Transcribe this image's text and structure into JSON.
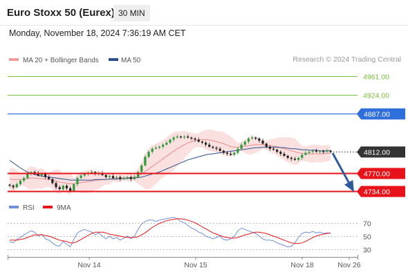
{
  "header": {
    "title": "Euro Stoxx 50 (Eurex)",
    "interval": "30 MIN",
    "timestamp": "Monday, November 18, 2024 7:36:19 AM CET",
    "credit": "Research © 2024 Trading Central"
  },
  "colors": {
    "resistance_green": "#7dbb3c",
    "resistance_blue": "#2f6fdb",
    "support_red": "#e8131a",
    "last_price": "#333333",
    "candle_up": "#2e9a3e",
    "candle_down": "#1f1f1f",
    "band_fill": "#f9d6d6",
    "ma20": "#e98a8a",
    "ma50": "#2a4f8c",
    "arrow": "#2f5b9a",
    "rsi": "#6f8fdc",
    "rsi_ma": "#e8131a"
  },
  "chart_data": [
    {
      "type": "candlestick",
      "legend": [
        {
          "name": "MA 20 + Bollinger Bands",
          "color": "#f29b9b"
        },
        {
          "name": "MA 50",
          "color": "#2a4f8c"
        }
      ],
      "ylim": [
        4726,
        4975
      ],
      "x_ticks": [
        "Nov 14",
        "Nov 15",
        "Nov 18",
        "Nov 26"
      ],
      "levels": [
        {
          "label": "4961.00",
          "value": 4961,
          "kind": "resistance",
          "style": "green"
        },
        {
          "label": "4924.00",
          "value": 4924,
          "kind": "resistance",
          "style": "green"
        },
        {
          "label": "4887.00",
          "value": 4887,
          "kind": "resistance",
          "style": "blue"
        },
        {
          "label": "4812.00",
          "value": 4812,
          "kind": "last",
          "style": "dark"
        },
        {
          "label": "4770.00",
          "value": 4770,
          "kind": "support",
          "style": "red"
        },
        {
          "label": "4734.00",
          "value": 4734,
          "kind": "support",
          "style": "red"
        }
      ],
      "forecast_arrow": {
        "from": 4812,
        "to": 4740
      },
      "closes": [
        4745,
        4742,
        4748,
        4755,
        4760,
        4768,
        4772,
        4770,
        4765,
        4768,
        4762,
        4758,
        4750,
        4742,
        4738,
        4745,
        4740,
        4735,
        4748,
        4760,
        4765,
        4768,
        4770,
        4772,
        4768,
        4770,
        4766,
        4762,
        4764,
        4760,
        4762,
        4758,
        4760,
        4762,
        4758,
        4762,
        4772,
        4785,
        4802,
        4812,
        4818,
        4820,
        4822,
        4826,
        4830,
        4836,
        4840,
        4842,
        4841,
        4842,
        4840,
        4838,
        4836,
        4832,
        4830,
        4826,
        4822,
        4820,
        4818,
        4814,
        4810,
        4808,
        4806,
        4810,
        4818,
        4826,
        4832,
        4838,
        4840,
        4838,
        4834,
        4828,
        4822,
        4818,
        4816,
        4812,
        4808,
        4804,
        4800,
        4798,
        4796,
        4800,
        4806,
        4810,
        4812,
        4814,
        4812,
        4813,
        4812,
        4814,
        4812
      ],
      "ma20": [
        4758,
        4757,
        4757,
        4757,
        4758,
        4759,
        4760,
        4760,
        4759,
        4759,
        4758,
        4757,
        4756,
        4754,
        4752,
        4751,
        4750,
        4749,
        4749,
        4750,
        4751,
        4752,
        4753,
        4754,
        4755,
        4756,
        4757,
        4757,
        4758,
        4759,
        4759,
        4760,
        4760,
        4761,
        4761,
        4762,
        4764,
        4768,
        4773,
        4778,
        4783,
        4788,
        4793,
        4798,
        4803,
        4808,
        4813,
        4818,
        4822,
        4826,
        4829,
        4832,
        4834,
        4835,
        4836,
        4836,
        4835,
        4834,
        4832,
        4830,
        4828,
        4825,
        4822,
        4821,
        4821,
        4822,
        4823,
        4824,
        4825,
        4826,
        4826,
        4826,
        4825,
        4824,
        4823,
        4822,
        4820,
        4818,
        4816,
        4814,
        4812,
        4810,
        4809,
        4808,
        4808,
        4808,
        4808,
        4808,
        4808,
        4809,
        4809
      ],
      "ma50": [
        4795,
        4790,
        4785,
        4780,
        4776,
        4772,
        4769,
        4767,
        4765,
        4764,
        4763,
        4762,
        4761,
        4760,
        4759,
        4758,
        4757,
        4756,
        4756,
        4756,
        4756,
        4756,
        4756,
        4756,
        4757,
        4757,
        4757,
        4757,
        4758,
        4758,
        4758,
        4759,
        4759,
        4759,
        4760,
        4760,
        4761,
        4762,
        4764,
        4766,
        4768,
        4770,
        4772,
        4775,
        4778,
        4781,
        4784,
        4787,
        4790,
        4793,
        4796,
        4798,
        4800,
        4802,
        4804,
        4806,
        4807,
        4808,
        4809,
        4810,
        4811,
        4812,
        4813,
        4814,
        4815,
        4816,
        4817,
        4818,
        4819,
        4820,
        4820,
        4821,
        4821,
        4821,
        4821,
        4821,
        4820,
        4820,
        4819,
        4818,
        4818,
        4817,
        4816,
        4816,
        4815,
        4815,
        4815,
        4814,
        4814,
        4814,
        4814
      ]
    },
    {
      "type": "line",
      "legend": [
        {
          "name": "RSI",
          "color": "#6f8fdc"
        },
        {
          "name": "9MA",
          "color": "#e8131a"
        }
      ],
      "ylim": [
        20,
        80
      ],
      "y_ticks": [
        30,
        50,
        70
      ],
      "rsi": [
        42,
        40,
        45,
        48,
        52,
        55,
        58,
        56,
        50,
        53,
        46,
        44,
        40,
        36,
        35,
        42,
        38,
        34,
        45,
        55,
        58,
        60,
        58,
        56,
        52,
        55,
        50,
        46,
        50,
        46,
        48,
        44,
        47,
        50,
        46,
        50,
        60,
        68,
        72,
        74,
        74,
        72,
        74,
        75,
        76,
        77,
        78,
        76,
        72,
        70,
        66,
        62,
        60,
        56,
        54,
        50,
        48,
        46,
        48,
        50,
        45,
        44,
        46,
        50,
        58,
        62,
        60,
        58,
        56,
        54,
        50,
        46,
        44,
        44,
        43,
        40,
        38,
        36,
        34,
        35,
        40,
        48,
        54,
        56,
        55,
        57,
        55,
        56,
        54,
        55,
        54
      ],
      "ma9": [
        44,
        44,
        44,
        45,
        46,
        48,
        50,
        52,
        52,
        52,
        51,
        50,
        48,
        46,
        44,
        43,
        42,
        40,
        40,
        42,
        45,
        48,
        51,
        54,
        56,
        56,
        56,
        55,
        53,
        52,
        51,
        50,
        49,
        48,
        48,
        48,
        49,
        52,
        55,
        59,
        63,
        66,
        69,
        71,
        73,
        74,
        75,
        76,
        76,
        75,
        74,
        72,
        70,
        67,
        64,
        61,
        58,
        55,
        53,
        51,
        49,
        48,
        47,
        47,
        48,
        50,
        52,
        53,
        55,
        56,
        56,
        55,
        54,
        52,
        50,
        48,
        46,
        44,
        42,
        40,
        39,
        39,
        40,
        42,
        45,
        48,
        50,
        52,
        53,
        54,
        55
      ]
    }
  ]
}
